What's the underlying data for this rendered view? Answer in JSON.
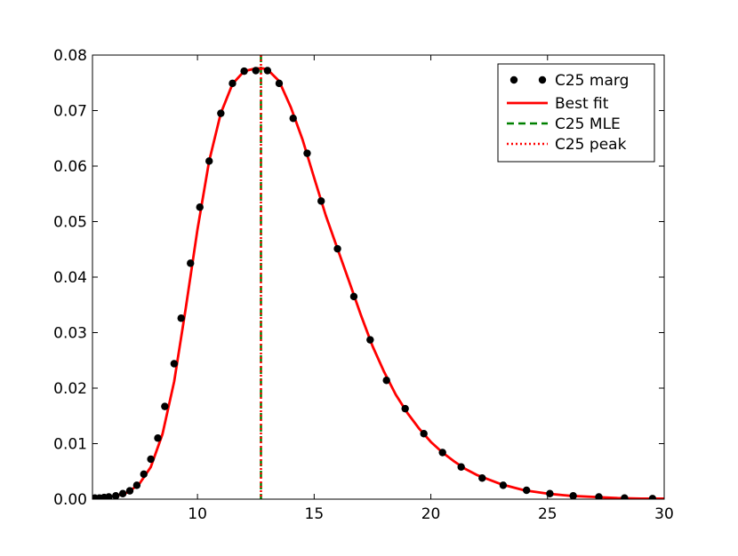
{
  "chart_data": {
    "type": "line",
    "title": "",
    "xlabel": "",
    "ylabel": "",
    "xlim": [
      5.5,
      30
    ],
    "ylim": [
      0,
      0.08
    ],
    "grid": false,
    "legend_position": "top-right",
    "x_ticks": [
      10,
      15,
      20,
      25,
      30
    ],
    "x_tick_labels": [
      "10",
      "15",
      "20",
      "25",
      "30"
    ],
    "y_ticks": [
      0,
      0.01,
      0.02,
      0.03,
      0.04,
      0.05,
      0.06,
      0.07,
      0.08
    ],
    "y_tick_labels": [
      "0.00",
      "0.01",
      "0.02",
      "0.03",
      "0.04",
      "0.05",
      "0.06",
      "0.07",
      "0.08"
    ],
    "series": [
      {
        "name": "C25 marg",
        "kind": "scatter",
        "color": "#000000",
        "x": [
          5.6,
          5.8,
          6.0,
          6.2,
          6.5,
          6.8,
          7.1,
          7.4,
          7.7,
          8.0,
          8.3,
          8.6,
          9.0,
          9.3,
          9.7,
          10.1,
          10.5,
          11.0,
          11.5,
          12.0,
          12.5,
          13.0,
          13.5,
          14.1,
          14.7,
          15.3,
          16.0,
          16.7,
          17.4,
          18.1,
          18.9,
          19.7,
          20.5,
          21.3,
          22.2,
          23.1,
          24.1,
          25.1,
          26.1,
          27.2,
          28.3,
          29.5
        ],
        "y": [
          0.0002,
          0.0002,
          0.0003,
          0.0004,
          0.0006,
          0.001,
          0.0015,
          0.0025,
          0.0045,
          0.0072,
          0.011,
          0.0167,
          0.0244,
          0.0326,
          0.0425,
          0.0526,
          0.0609,
          0.0695,
          0.0749,
          0.0771,
          0.0772,
          0.0772,
          0.0749,
          0.0686,
          0.0623,
          0.0537,
          0.0451,
          0.0365,
          0.0287,
          0.0214,
          0.0163,
          0.0118,
          0.0084,
          0.0058,
          0.0038,
          0.0025,
          0.0016,
          0.001,
          0.0006,
          0.0004,
          0.0002,
          0.0001
        ]
      },
      {
        "name": "Best fit",
        "kind": "line",
        "color": "#ff0000",
        "x": [
          5.5,
          6.0,
          6.5,
          7.0,
          7.5,
          8.0,
          8.5,
          9.0,
          9.5,
          10.0,
          10.5,
          11.0,
          11.5,
          12.0,
          12.5,
          12.8,
          13.0,
          13.5,
          14.0,
          14.5,
          15.0,
          15.5,
          16.0,
          16.5,
          17.0,
          17.5,
          18.0,
          18.5,
          19.0,
          19.5,
          20.0,
          20.5,
          21.0,
          21.5,
          22.0,
          23.0,
          24.0,
          25.0,
          26.0,
          27.0,
          28.0,
          29.0,
          30.0
        ],
        "y": [
          0.0002,
          0.0003,
          0.0006,
          0.0012,
          0.0027,
          0.0058,
          0.0117,
          0.0212,
          0.0345,
          0.0486,
          0.0609,
          0.0695,
          0.0748,
          0.0771,
          0.0776,
          0.0776,
          0.0774,
          0.0753,
          0.0706,
          0.0648,
          0.0579,
          0.0511,
          0.0451,
          0.0392,
          0.0332,
          0.0276,
          0.0229,
          0.0188,
          0.0155,
          0.0127,
          0.0103,
          0.0084,
          0.0068,
          0.0054,
          0.0043,
          0.0027,
          0.0016,
          0.001,
          0.0006,
          0.0004,
          0.0002,
          0.0001,
          0.0001
        ]
      },
      {
        "name": "C25 MLE",
        "kind": "vline",
        "color": "#008000",
        "dash": "dashed",
        "x": 12.72
      },
      {
        "name": "C25 peak",
        "kind": "vline",
        "color": "#ff0000",
        "dash": "dotted",
        "x": 12.72
      }
    ]
  }
}
